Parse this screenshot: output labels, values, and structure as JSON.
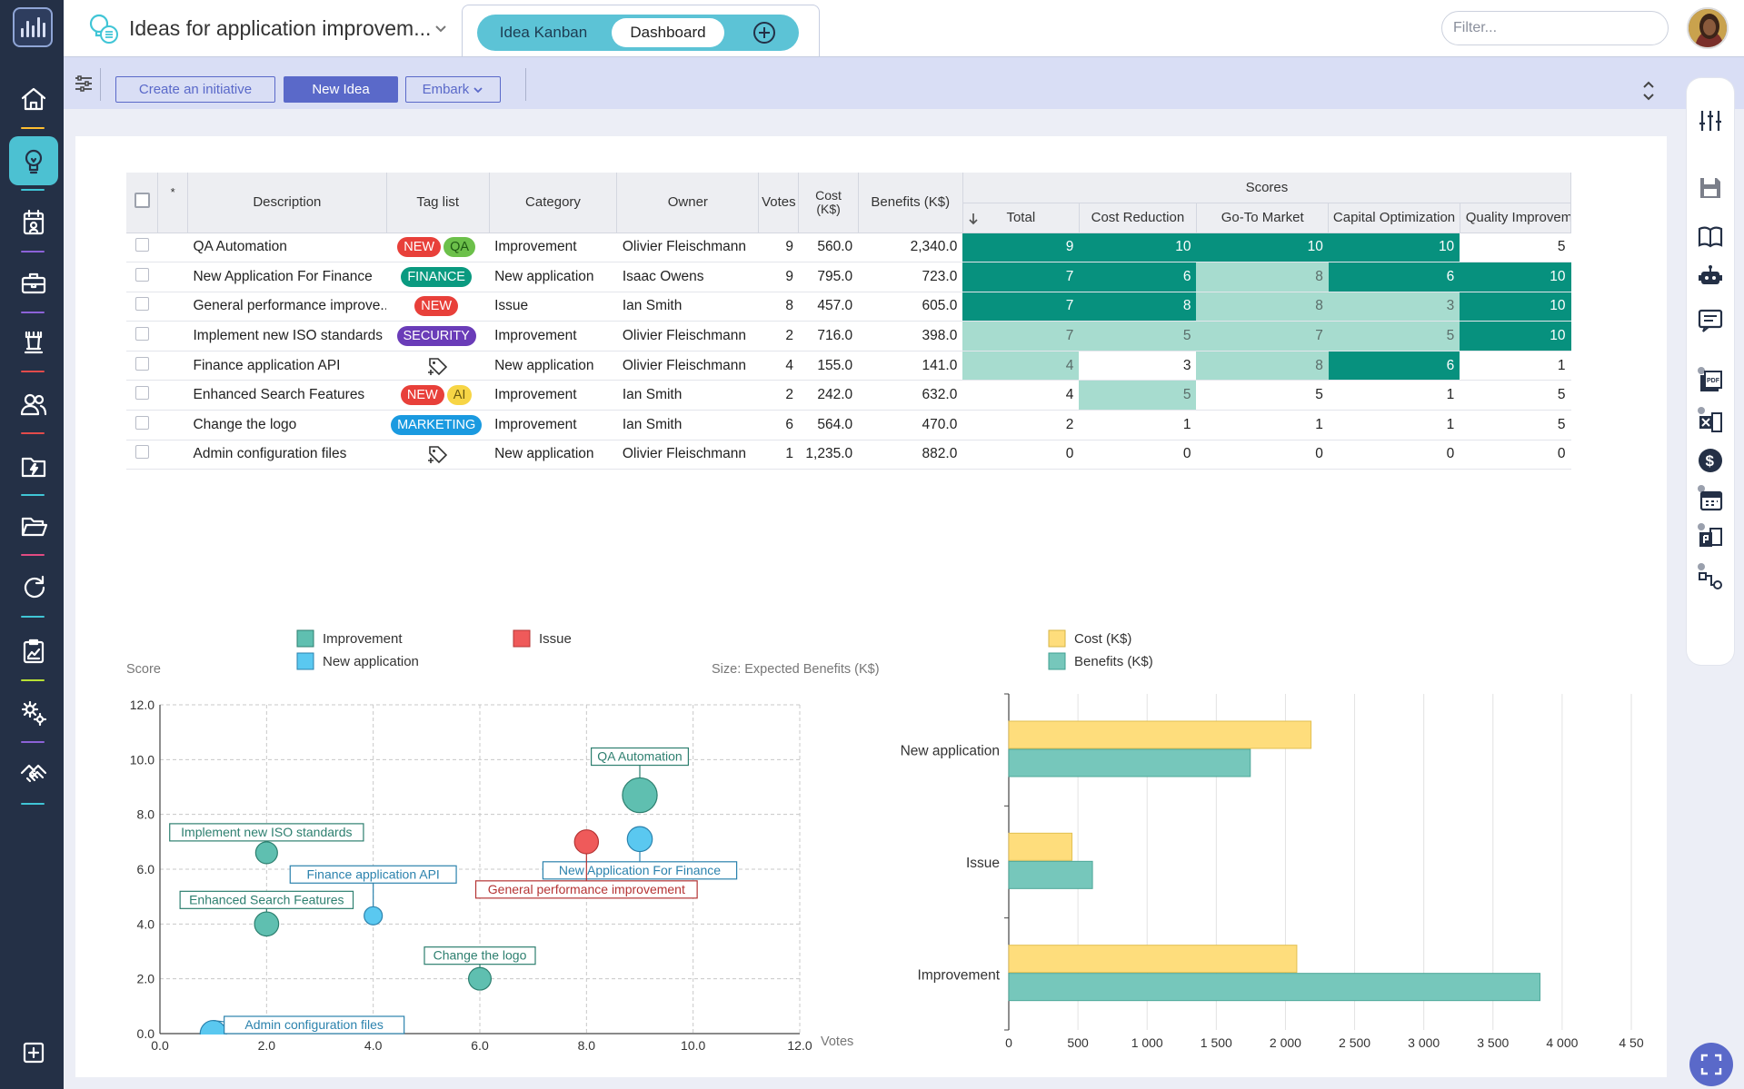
{
  "app": {
    "title": "Ideas for application improvem...",
    "tabs": [
      {
        "label": "Idea Kanban"
      },
      {
        "label": "Dashboard"
      }
    ],
    "filter_placeholder": "Filter..."
  },
  "sidebar": {
    "items": [
      {
        "icon": "home-icon",
        "accent": "#ffbe30"
      },
      {
        "icon": "lightbulb-icon",
        "accent": "#40c5d6"
      },
      {
        "icon": "calendar-icon",
        "accent": "#8c62d8"
      },
      {
        "icon": "briefcase-icon",
        "accent": "#8c62d8"
      },
      {
        "icon": "chess-rook-icon",
        "accent": "#e24b4b"
      },
      {
        "icon": "people-icon",
        "accent": "#e24b4b"
      },
      {
        "icon": "folder-lightning-icon",
        "accent": "#40c5d6"
      },
      {
        "icon": "folder-open-icon",
        "accent": "#e24b82"
      },
      {
        "icon": "cycle-icon",
        "accent": "#40c5d6"
      },
      {
        "icon": "clipboard-chart-icon",
        "accent": "#b8e035"
      },
      {
        "icon": "gears-icon",
        "accent": "#8c62d8"
      },
      {
        "icon": "handshake-icon",
        "accent": "#40c5d6"
      },
      {
        "icon": "plus-square-icon",
        "accent": "#ffffff"
      }
    ]
  },
  "toolbar": {
    "create_initiative": "Create an initiative",
    "new_idea": "New Idea",
    "embark": "Embark"
  },
  "table": {
    "headers": {
      "star": "*",
      "description": "Description",
      "tag_list": "Tag list",
      "category": "Category",
      "owner": "Owner",
      "votes": "Votes",
      "cost": "Cost (K$)",
      "benefits": "Benefits (K$)",
      "scores": "Scores",
      "total": "Total",
      "cost_reduction": "Cost Reduction",
      "go_to_market": "Go-To Market",
      "capital_optimization": "Capital Optimization",
      "quality_improvement": "Quality Improveme"
    },
    "rows": [
      {
        "description": "QA Automation",
        "tags": [
          {
            "label": "NEW",
            "color": "#e8403a"
          },
          {
            "label": "QA",
            "color": "#6cc04a"
          }
        ],
        "category": "Improvement",
        "owner": "Olivier Fleischmann",
        "votes": "9",
        "cost": "560.0",
        "benefits": "2,340.0",
        "scores": [
          "9",
          "10",
          "10",
          "10",
          "5"
        ],
        "shades": [
          "dk",
          "dk",
          "dk",
          "dk",
          ""
        ]
      },
      {
        "description": "New Application For Finance",
        "tags": [
          {
            "label": "FINANCE",
            "color": "#0a9a80"
          }
        ],
        "category": "New application",
        "owner": "Isaac Owens",
        "votes": "9",
        "cost": "795.0",
        "benefits": "723.0",
        "scores": [
          "7",
          "6",
          "8",
          "6",
          "10"
        ],
        "shades": [
          "dk",
          "dk",
          "lt",
          "dk",
          "dk"
        ]
      },
      {
        "description": "General performance improve...",
        "tags": [
          {
            "label": "NEW",
            "color": "#e8403a"
          }
        ],
        "category": "Issue",
        "owner": "Ian Smith",
        "votes": "8",
        "cost": "457.0",
        "benefits": "605.0",
        "scores": [
          "7",
          "8",
          "8",
          "3",
          "10"
        ],
        "shades": [
          "dk",
          "dk",
          "lt",
          "lt",
          "dk"
        ]
      },
      {
        "description": "Implement new ISO standards",
        "tags": [
          {
            "label": "SECURITY",
            "color": "#6a3cb8"
          }
        ],
        "category": "Improvement",
        "owner": "Olivier Fleischmann",
        "votes": "2",
        "cost": "716.0",
        "benefits": "398.0",
        "scores": [
          "7",
          "5",
          "7",
          "5",
          "10"
        ],
        "shades": [
          "lt",
          "lt",
          "lt",
          "lt",
          "dk"
        ]
      },
      {
        "description": "Finance application API",
        "tags": [],
        "category": "New application",
        "owner": "Olivier Fleischmann",
        "votes": "4",
        "cost": "155.0",
        "benefits": "141.0",
        "scores": [
          "4",
          "3",
          "8",
          "6",
          "1"
        ],
        "shades": [
          "lt",
          "",
          "lt",
          "dk",
          ""
        ]
      },
      {
        "description": "Enhanced Search Features",
        "tags": [
          {
            "label": "NEW",
            "color": "#e8403a"
          },
          {
            "label": "AI",
            "color": "#f7d545"
          }
        ],
        "category": "Improvement",
        "owner": "Ian Smith",
        "votes": "2",
        "cost": "242.0",
        "benefits": "632.0",
        "scores": [
          "4",
          "5",
          "5",
          "1",
          "5"
        ],
        "shades": [
          "",
          "lt",
          "",
          "",
          ""
        ]
      },
      {
        "description": "Change the logo",
        "tags": [
          {
            "label": "MARKETING",
            "color": "#1a9ae0"
          }
        ],
        "category": "Improvement",
        "owner": "Ian Smith",
        "votes": "6",
        "cost": "564.0",
        "benefits": "470.0",
        "scores": [
          "2",
          "1",
          "1",
          "1",
          "5"
        ],
        "shades": [
          "",
          "",
          "",
          "",
          ""
        ]
      },
      {
        "description": "Admin configuration files",
        "tags": [],
        "category": "New application",
        "owner": "Olivier Fleischmann",
        "votes": "1",
        "cost": "1,235.0",
        "benefits": "882.0",
        "scores": [
          "0",
          "0",
          "0",
          "0",
          "0"
        ],
        "shades": [
          "",
          "",
          "",
          "",
          ""
        ]
      }
    ]
  },
  "chart_data": [
    {
      "type": "scatter",
      "ylabel": "Score",
      "xlabel": "Votes",
      "size_label": "Size: Expected Benefits (K$)",
      "xlim": [
        0,
        12
      ],
      "ylim": [
        0,
        12
      ],
      "x_ticks": [
        "0.0",
        "2.0",
        "4.0",
        "6.0",
        "8.0",
        "10.0",
        "12.0"
      ],
      "y_ticks": [
        "0.0",
        "2.0",
        "4.0",
        "6.0",
        "8.0",
        "10.0",
        "12.0"
      ],
      "grid": true,
      "legend": [
        {
          "name": "Improvement",
          "color": "#5fbfb0"
        },
        {
          "name": "New application",
          "color": "#5ac8f0"
        },
        {
          "name": "Issue",
          "color": "#ef5a5a"
        }
      ],
      "points": [
        {
          "label": "QA Automation",
          "series": "Improvement",
          "x": 9,
          "y": 8.7,
          "size": 2340
        },
        {
          "label": "New Application For Finance",
          "series": "New application",
          "x": 9,
          "y": 7.1,
          "size": 723
        },
        {
          "label": "General performance improvement",
          "series": "Issue",
          "x": 8,
          "y": 7.0,
          "size": 605
        },
        {
          "label": "Implement new ISO standards",
          "series": "Improvement",
          "x": 2,
          "y": 6.6,
          "size": 398
        },
        {
          "label": "Finance application API",
          "series": "New application",
          "x": 4,
          "y": 4.3,
          "size": 141
        },
        {
          "label": "Enhanced Search Features",
          "series": "Improvement",
          "x": 2,
          "y": 4.0,
          "size": 632
        },
        {
          "label": "Change the logo",
          "series": "Improvement",
          "x": 6,
          "y": 2.0,
          "size": 470
        },
        {
          "label": "Admin configuration files",
          "series": "New application",
          "x": 1,
          "y": 0.0,
          "size": 882
        }
      ]
    },
    {
      "type": "bar",
      "orientation": "horizontal",
      "categories": [
        "New application",
        "Issue",
        "Improvement"
      ],
      "series": [
        {
          "name": "Cost (K$)",
          "color": "#fedd7c",
          "values": [
            2185,
            457,
            2082
          ]
        },
        {
          "name": "Benefits (K$)",
          "color": "#76c7bb",
          "values": [
            1746,
            605,
            3840
          ]
        }
      ],
      "xlim": [
        0,
        4500
      ],
      "x_ticks": [
        "0",
        "500",
        "1 000",
        "1 500",
        "2 000",
        "2 500",
        "3 000",
        "3 500",
        "4 000",
        "4 50"
      ],
      "grid": true,
      "legend_position": "top"
    }
  ]
}
